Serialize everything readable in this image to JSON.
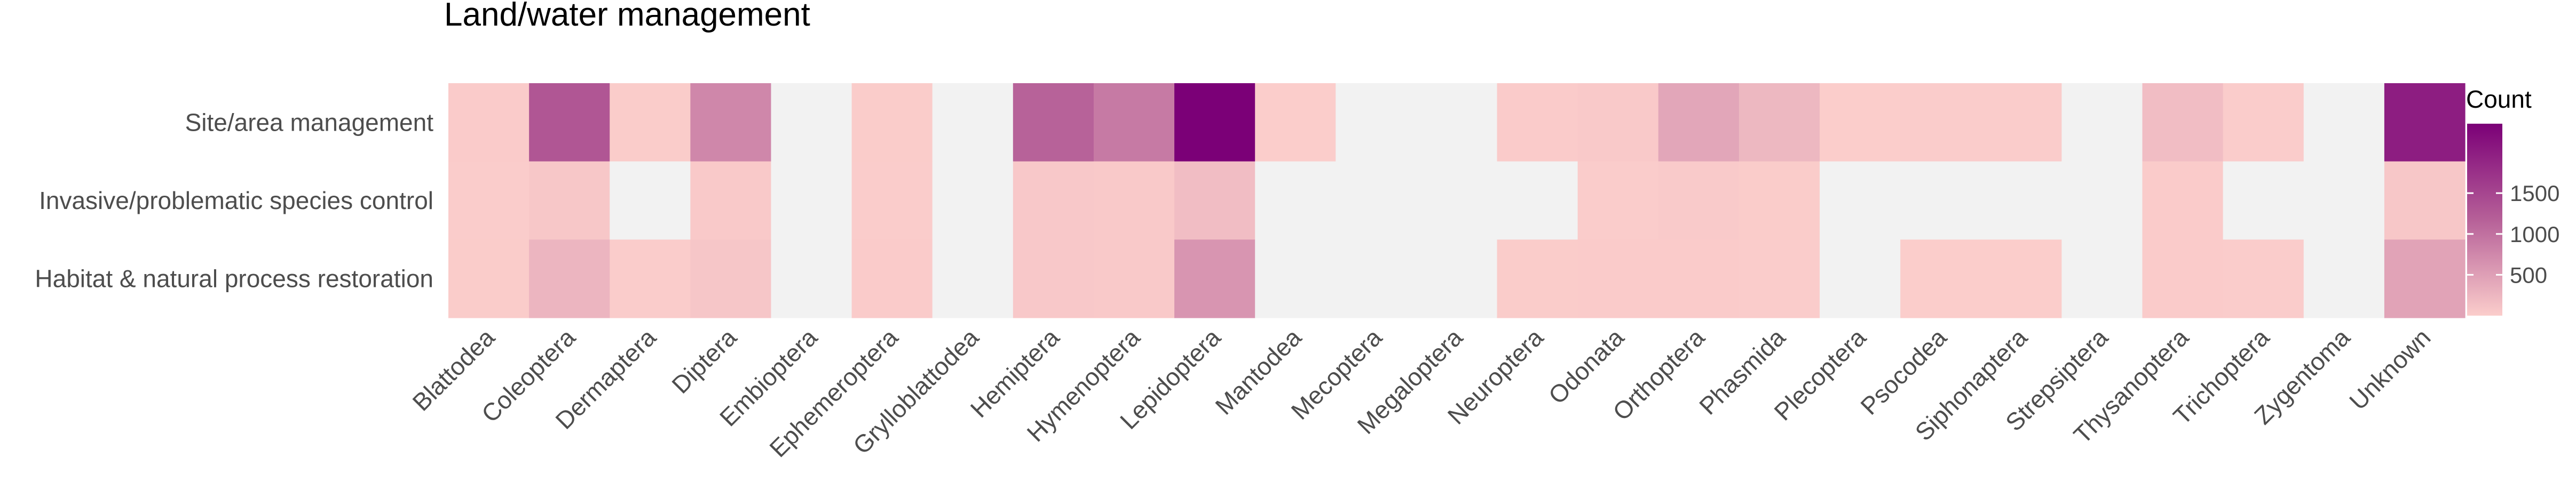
{
  "chart_data": {
    "type": "heatmap",
    "title": "Land/water management",
    "xlabel": "",
    "ylabel": "",
    "rows": [
      "Site/area management",
      "Invasive/problematic species control",
      "Habitat & natural process restoration"
    ],
    "columns": [
      "Blattodea",
      "Coleoptera",
      "Dermaptera",
      "Diptera",
      "Embioptera",
      "Ephemeroptera",
      "Grylloblattodea",
      "Hemiptera",
      "Hymenoptera",
      "Lepidoptera",
      "Mantodea",
      "Mecoptera",
      "Megaloptera",
      "Neuroptera",
      "Odonata",
      "Orthoptera",
      "Phasmida",
      "Plecoptera",
      "Psocodea",
      "Siphonaptera",
      "Strepsiptera",
      "Thysanoptera",
      "Trichoptera",
      "Zygentoma",
      "Unknown"
    ],
    "values": [
      [
        20,
        1300,
        15,
        750,
        null,
        15,
        null,
        1150,
        900,
        2350,
        5,
        null,
        null,
        20,
        40,
        420,
        230,
        5,
        10,
        10,
        null,
        170,
        10,
        null,
        2000
      ],
      [
        10,
        60,
        null,
        40,
        null,
        10,
        null,
        50,
        40,
        170,
        null,
        null,
        null,
        null,
        10,
        30,
        15,
        null,
        null,
        null,
        null,
        20,
        null,
        null,
        60
      ],
      [
        15,
        260,
        10,
        80,
        null,
        20,
        null,
        55,
        40,
        600,
        null,
        null,
        null,
        15,
        20,
        20,
        10,
        null,
        5,
        5,
        null,
        25,
        10,
        null,
        450
      ]
    ],
    "missing_color": "#f2f2f2",
    "color_scale": {
      "low_color": "#fbcdcb",
      "high_color": "#7b0077",
      "min": 0,
      "max": 2350
    },
    "legend": {
      "title": "Count",
      "ticks": [
        500,
        1000,
        1500
      ],
      "position": "right"
    },
    "grid": false
  }
}
